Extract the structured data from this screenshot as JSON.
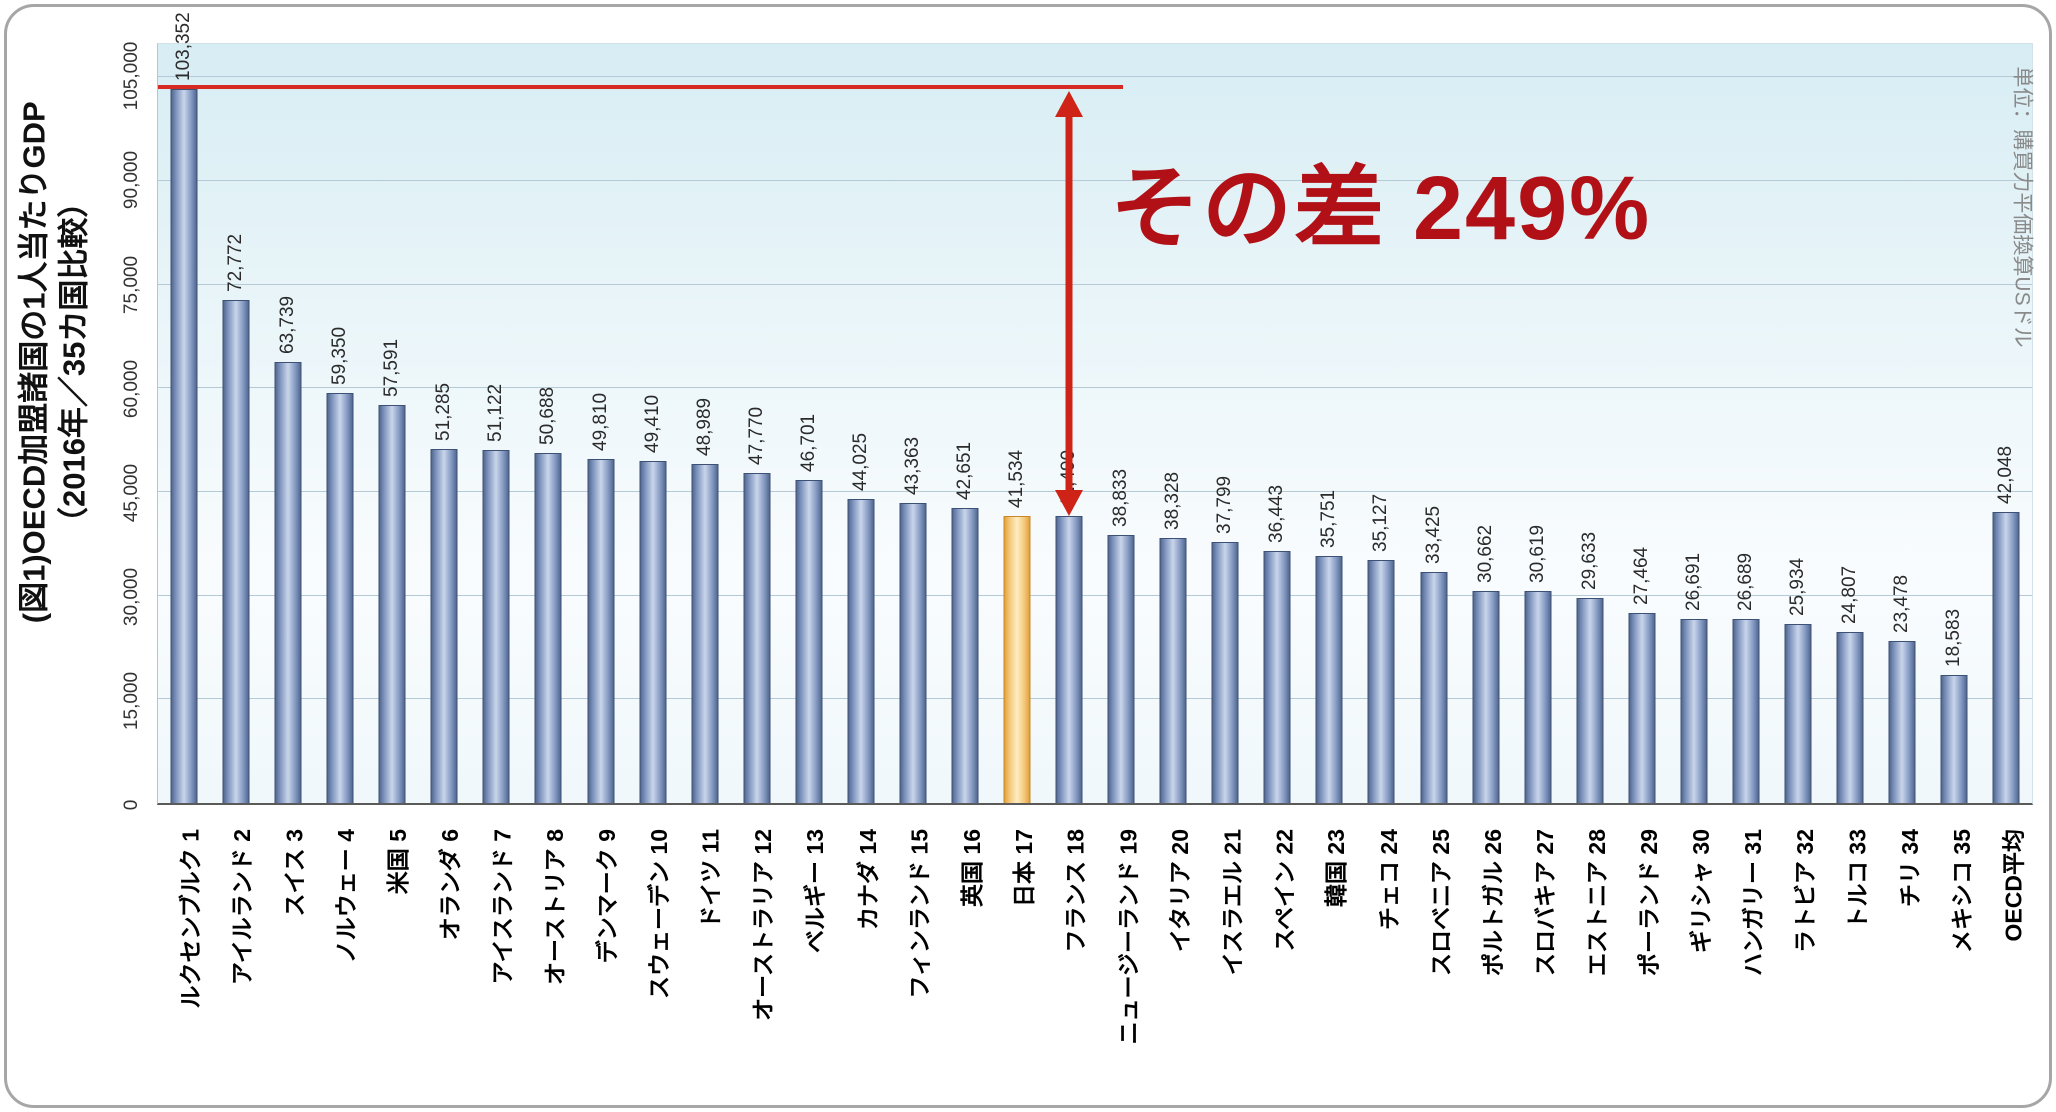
{
  "frame": {
    "title_line1": "(図1)OECD加盟諸国の1人当たりGDP",
    "title_line2": "（2016年／35カ国比較）",
    "unit_note": "単位：購買力平価換算USドル"
  },
  "annotation": {
    "text": "その差 249%",
    "color": "#b11116",
    "line_color": "#d62a22",
    "line_value": 103352,
    "arrow_top_value": 103352,
    "arrow_bottom_value": 41534,
    "arrow_column_index": 17
  },
  "chart_data": {
    "type": "bar",
    "title": "(図1)OECD加盟諸国の1人当たりGDP（2016年／35カ国比較）",
    "unit": "単位：購買力平価換算USドル",
    "ylim": [
      0,
      105000
    ],
    "plot_top_value": 109800,
    "grid": true,
    "y_ticks": [
      0,
      15000,
      30000,
      45000,
      60000,
      75000,
      90000,
      105000
    ],
    "y_tick_labels": [
      "0",
      "15,000",
      "30,000",
      "45,000",
      "60,000",
      "75,000",
      "90,000",
      "105,000"
    ],
    "categories": [
      "ルクセンブルク 1",
      "アイルランド 2",
      "スイス 3",
      "ノルウェー 4",
      "米国 5",
      "オランダ 6",
      "アイスランド 7",
      "オーストリア 8",
      "デンマーク 9",
      "スウェーデン 10",
      "ドイツ 11",
      "オーストラリア 12",
      "ベルギー 13",
      "カナダ 14",
      "フィンランド 15",
      "英国 16",
      "日本 17",
      "フランス 18",
      "ニュージーランド 19",
      "イタリア 20",
      "イスラエル 21",
      "スペイン 22",
      "韓国 23",
      "チェコ 24",
      "スロベニア 25",
      "ポルトガル 26",
      "スロバキア 27",
      "エストニア 28",
      "ポーランド 29",
      "ギリシャ 30",
      "ハンガリー 31",
      "ラトビア 32",
      "トルコ 33",
      "チリ 34",
      "メキシコ 35",
      "OECD平均"
    ],
    "values": [
      103352,
      72772,
      63739,
      59350,
      57591,
      51285,
      51122,
      50688,
      49810,
      49410,
      48989,
      47770,
      46701,
      44025,
      43363,
      42651,
      41534,
      41490,
      38833,
      38328,
      37799,
      36443,
      35751,
      35127,
      33425,
      30662,
      30619,
      29633,
      27464,
      26691,
      26689,
      25934,
      24807,
      23478,
      18583,
      42048
    ],
    "value_labels": [
      "103,352",
      "72,772",
      "63,739",
      "59,350",
      "57,591",
      "51,285",
      "51,122",
      "50,688",
      "49,810",
      "49,410",
      "48,989",
      "47,770",
      "46,701",
      "44,025",
      "43,363",
      "42,651",
      "41,534",
      "41,490",
      "38,833",
      "38,328",
      "37,799",
      "36,443",
      "35,751",
      "35,127",
      "33,425",
      "30,662",
      "30,619",
      "29,633",
      "27,464",
      "26,691",
      "26,689",
      "25,934",
      "24,807",
      "23,478",
      "18,583",
      "42,048"
    ],
    "highlight_index": 16,
    "highlight_label": "日本 17",
    "bar_color": "#7d93bd",
    "highlight_color": "#f3c778"
  }
}
